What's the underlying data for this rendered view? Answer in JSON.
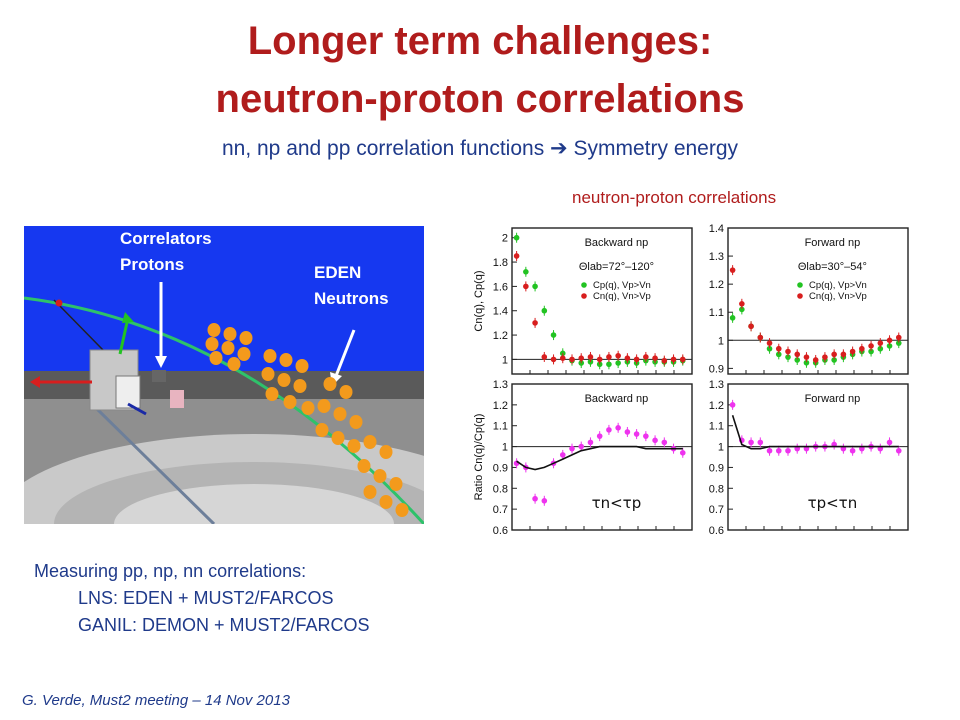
{
  "slide": {
    "title_line1": "Longer term challenges:",
    "title_line2": "neutron-proton correlations",
    "subtitle_left": "nn, np and pp correlation functions",
    "subtitle_arrow": "➔",
    "subtitle_right": "Symmetry energy",
    "np_label": "neutron-proton correlations",
    "scene_labels": {
      "correlators_line1": "Correlators",
      "correlators_line2": "Protons",
      "eden_line1": "EDEN",
      "eden_line2": "Neutrons"
    },
    "measure": {
      "heading": "Measuring pp, np, nn correlations:",
      "items": [
        "LNS: EDEN + MUST2/FARCOS",
        "GANIL: DEMON + MUST2/FARCOS"
      ]
    },
    "footer": "G. Verde, Must2 meeting – 14 Nov 2013"
  },
  "colors": {
    "title": "#b01c1c",
    "body_text": "#1f3a8a",
    "scene_sky": "#1638f0",
    "scene_floor": "#8a8a8a",
    "detector": "#f39a1c",
    "cp_green": "#22c322",
    "cn_red": "#d81e1e",
    "ratio_magenta": "#ee33ee"
  },
  "chart_data": [
    {
      "type": "scatter",
      "title": "Backward np",
      "subtitle": "Θlab=72°–120°",
      "ylabel": "Cn(q), Cp(q)",
      "ylim": [
        0.88,
        2.08
      ],
      "yticks": [
        "1",
        "1.2",
        "1.4",
        "1.6",
        "1.8",
        "2"
      ],
      "reference_y": 1,
      "series": [
        {
          "name": "Cp(q), Vp>Vn",
          "color": "green",
          "x": [
            1,
            2,
            3,
            4,
            5,
            6,
            7,
            8,
            9,
            10,
            11,
            12,
            13,
            14,
            15,
            16,
            17,
            18,
            19
          ],
          "y": [
            2.0,
            1.72,
            1.6,
            1.4,
            1.2,
            1.05,
            0.99,
            0.97,
            0.98,
            0.96,
            0.96,
            0.97,
            0.98,
            0.97,
            0.99,
            0.98,
            0.98,
            0.98,
            0.99
          ]
        },
        {
          "name": "Cn(q), Vn>Vp",
          "color": "red",
          "x": [
            1,
            2,
            3,
            4,
            5,
            6,
            7,
            8,
            9,
            10,
            11,
            12,
            13,
            14,
            15,
            16,
            17,
            18,
            19
          ],
          "y": [
            1.85,
            1.6,
            1.3,
            1.02,
            1.0,
            1.01,
            1.0,
            1.01,
            1.02,
            1.0,
            1.02,
            1.03,
            1.01,
            1.0,
            1.02,
            1.01,
            0.99,
            1.0,
            1.0
          ]
        }
      ]
    },
    {
      "type": "scatter",
      "title": "Forward np",
      "subtitle": "Θlab=30°–54°",
      "ylabel": "",
      "ylim": [
        0.88,
        1.4
      ],
      "yticks": [
        "0.9",
        "1",
        "1.1",
        "1.2",
        "1.3",
        "1.4"
      ],
      "reference_y": 1,
      "series": [
        {
          "name": "Cp(q), Vp>Vn",
          "color": "green",
          "x": [
            1,
            2,
            3,
            4,
            5,
            6,
            7,
            8,
            9,
            10,
            11,
            12,
            13,
            14,
            15,
            16,
            17,
            18,
            19
          ],
          "y": [
            1.08,
            1.11,
            1.05,
            1.01,
            0.97,
            0.95,
            0.94,
            0.93,
            0.92,
            0.92,
            0.93,
            0.93,
            0.94,
            0.95,
            0.96,
            0.96,
            0.97,
            0.98,
            0.99
          ]
        },
        {
          "name": "Cn(q), Vn>Vp",
          "color": "red",
          "x": [
            1,
            2,
            3,
            4,
            5,
            6,
            7,
            8,
            9,
            10,
            11,
            12,
            13,
            14,
            15,
            16,
            17,
            18,
            19
          ],
          "y": [
            1.25,
            1.13,
            1.05,
            1.01,
            0.99,
            0.97,
            0.96,
            0.95,
            0.94,
            0.93,
            0.94,
            0.95,
            0.95,
            0.96,
            0.97,
            0.98,
            0.99,
            1.0,
            1.01
          ]
        }
      ]
    },
    {
      "type": "scatter",
      "title": "Backward np",
      "ylabel": "Ratio Cn(q)/Cp(q)",
      "ylim": [
        0.6,
        1.3
      ],
      "yticks": [
        "0.6",
        "0.7",
        "0.8",
        "0.9",
        "1",
        "1.1",
        "1.2",
        "1.3"
      ],
      "annotation": "τn<τp",
      "reference_y": 1,
      "series": [
        {
          "color": "magenta",
          "x": [
            1,
            2,
            3,
            4,
            5,
            6,
            7,
            8,
            9,
            10,
            11,
            12,
            13,
            14,
            15,
            16,
            17,
            18,
            19
          ],
          "y": [
            0.92,
            0.9,
            0.75,
            0.74,
            0.92,
            0.96,
            0.99,
            1.0,
            1.02,
            1.05,
            1.08,
            1.09,
            1.07,
            1.06,
            1.05,
            1.03,
            1.02,
            0.99,
            0.97
          ]
        },
        {
          "color": "black",
          "style": "line",
          "x": [
            1,
            2,
            3,
            4,
            5,
            6,
            7,
            8,
            9,
            10,
            11,
            12,
            13,
            14,
            15,
            16,
            17,
            18,
            19
          ],
          "y": [
            0.93,
            0.9,
            0.89,
            0.9,
            0.92,
            0.94,
            0.96,
            0.98,
            0.99,
            1.0,
            1.0,
            1.0,
            1.0,
            1.0,
            0.99,
            0.99,
            0.99,
            0.99,
            0.99
          ]
        }
      ]
    },
    {
      "type": "scatter",
      "title": "Forward np",
      "ylabel": "",
      "ylim": [
        0.6,
        1.3
      ],
      "yticks": [
        "0.6",
        "0.7",
        "0.8",
        "0.9",
        "1",
        "1.1",
        "1.2",
        "1.3"
      ],
      "annotation": "τp<τn",
      "reference_y": 1,
      "series": [
        {
          "color": "magenta",
          "x": [
            1,
            2,
            3,
            4,
            5,
            6,
            7,
            8,
            9,
            10,
            11,
            12,
            13,
            14,
            15,
            16,
            17,
            18,
            19
          ],
          "y": [
            1.2,
            1.03,
            1.02,
            1.02,
            0.98,
            0.98,
            0.98,
            0.99,
            0.99,
            1.0,
            1.0,
            1.01,
            0.99,
            0.98,
            0.99,
            1.0,
            0.99,
            1.02,
            0.98
          ]
        },
        {
          "color": "black",
          "style": "line",
          "x": [
            1,
            2,
            3,
            4,
            5,
            6,
            7,
            8,
            9,
            10,
            11,
            12,
            13,
            14,
            15,
            16,
            17,
            18,
            19
          ],
          "y": [
            1.15,
            1.01,
            0.99,
            0.99,
            1.0,
            1.0,
            1.0,
            1.0,
            1.0,
            1.0,
            1.0,
            1.0,
            1.0,
            1.0,
            1.0,
            1.0,
            1.0,
            1.0,
            1.0
          ]
        }
      ]
    }
  ]
}
